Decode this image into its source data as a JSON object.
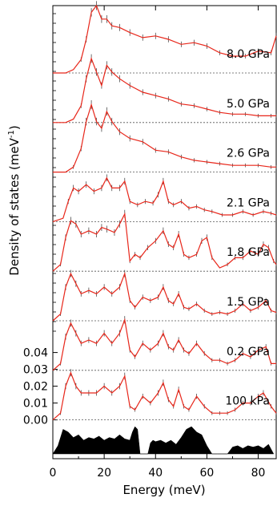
{
  "chart_data": {
    "type": "line",
    "xlabel": "Energy (meV)",
    "ylabel": "Density of states (meV",
    "ylabel_sup": "-1",
    "ylabel_tail": ")",
    "xlim": [
      0,
      87
    ],
    "x_ticks": [
      0,
      20,
      40,
      60,
      80
    ],
    "x_tick_labels": [
      "0",
      "20",
      "40",
      "60",
      "80"
    ],
    "y_ticks": [
      0.0,
      0.01,
      0.02,
      0.03,
      0.04
    ],
    "y_tick_labels": [
      "0.00",
      "0.01",
      "0.02",
      "0.03",
      "0.04"
    ],
    "grid": false,
    "series": [
      {
        "name": "8.0 GPa",
        "label": "8.0 GPa",
        "x": [
          0,
          5,
          8,
          11,
          13,
          15,
          17,
          19,
          21,
          23,
          26,
          30,
          35,
          40,
          45,
          50,
          55,
          60,
          65,
          70,
          75,
          80,
          85,
          87
        ],
        "values": [
          0,
          0,
          0.002,
          0.008,
          0.02,
          0.036,
          0.04,
          0.032,
          0.032,
          0.028,
          0.027,
          0.024,
          0.021,
          0.022,
          0.02,
          0.017,
          0.018,
          0.016,
          0.012,
          0.01,
          0.01,
          0.013,
          0.012,
          0.022
        ]
      },
      {
        "name": "5.0 GPa",
        "label": "5.0 GPa",
        "x": [
          0,
          5,
          8,
          11,
          13,
          15,
          17,
          19,
          21,
          23,
          26,
          30,
          35,
          40,
          45,
          50,
          55,
          60,
          65,
          70,
          75,
          80,
          85,
          87
        ],
        "values": [
          0,
          0,
          0.002,
          0.01,
          0.026,
          0.038,
          0.03,
          0.022,
          0.034,
          0.03,
          0.026,
          0.022,
          0.018,
          0.016,
          0.014,
          0.011,
          0.01,
          0.008,
          0.006,
          0.005,
          0.005,
          0.004,
          0.004,
          0.004
        ]
      },
      {
        "name": "2.6 GPa",
        "label": "2.6 GPa",
        "x": [
          0,
          5,
          8,
          11,
          13,
          15,
          17,
          19,
          21,
          23,
          26,
          30,
          35,
          40,
          45,
          50,
          55,
          60,
          65,
          70,
          75,
          80,
          85,
          87
        ],
        "values": [
          0,
          0,
          0.003,
          0.014,
          0.03,
          0.04,
          0.03,
          0.026,
          0.036,
          0.03,
          0.024,
          0.02,
          0.018,
          0.013,
          0.012,
          0.009,
          0.007,
          0.006,
          0.005,
          0.004,
          0.004,
          0.004,
          0.003,
          0.003
        ]
      },
      {
        "name": "2.1 GPa",
        "label": "2.1 GPa",
        "x": [
          0,
          4,
          6,
          8,
          10,
          13,
          16,
          19,
          21,
          23,
          26,
          28,
          30,
          33,
          36,
          39,
          41,
          43,
          45,
          47,
          50,
          53,
          56,
          59,
          62,
          66,
          70,
          74,
          78,
          82,
          85,
          87
        ],
        "values": [
          0,
          0.002,
          0.012,
          0.02,
          0.018,
          0.022,
          0.018,
          0.02,
          0.026,
          0.02,
          0.02,
          0.024,
          0.012,
          0.01,
          0.012,
          0.011,
          0.016,
          0.024,
          0.012,
          0.01,
          0.012,
          0.008,
          0.009,
          0.007,
          0.006,
          0.004,
          0.004,
          0.006,
          0.004,
          0.006,
          0.005,
          0.004
        ]
      },
      {
        "name": "1.8 GPa",
        "label": "1.8 GPa",
        "x": [
          0,
          3,
          5,
          7,
          9,
          11,
          14,
          17,
          19,
          21,
          24,
          26,
          28,
          30,
          32,
          34,
          37,
          40,
          43,
          45,
          47,
          49,
          51,
          53,
          56,
          58,
          60,
          62,
          65,
          68,
          71,
          74,
          77,
          80,
          82,
          84,
          86,
          87
        ],
        "values": [
          0,
          0.004,
          0.02,
          0.03,
          0.028,
          0.022,
          0.024,
          0.022,
          0.026,
          0.025,
          0.023,
          0.028,
          0.034,
          0.006,
          0.01,
          0.008,
          0.014,
          0.018,
          0.024,
          0.016,
          0.014,
          0.022,
          0.01,
          0.008,
          0.01,
          0.018,
          0.02,
          0.008,
          0.002,
          0.004,
          0.008,
          0.008,
          0.012,
          0.01,
          0.016,
          0.014,
          0.006,
          0.004
        ]
      },
      {
        "name": "1.5 GPa",
        "label": "1.5 GPa",
        "x": [
          0,
          3,
          5,
          7,
          9,
          11,
          14,
          17,
          20,
          23,
          26,
          28,
          30,
          32,
          35,
          38,
          41,
          43,
          45,
          47,
          49,
          51,
          53,
          56,
          59,
          62,
          65,
          68,
          71,
          74,
          77,
          80,
          83,
          85,
          87
        ],
        "values": [
          0,
          0.004,
          0.02,
          0.028,
          0.022,
          0.016,
          0.018,
          0.016,
          0.02,
          0.016,
          0.02,
          0.028,
          0.012,
          0.008,
          0.014,
          0.012,
          0.014,
          0.02,
          0.012,
          0.01,
          0.016,
          0.008,
          0.007,
          0.01,
          0.006,
          0.004,
          0.005,
          0.004,
          0.006,
          0.01,
          0.006,
          0.008,
          0.012,
          0.006,
          0.005
        ]
      },
      {
        "name": "0.2 GPa",
        "label": "0.2 GPa",
        "x": [
          0,
          3,
          5,
          7,
          9,
          11,
          14,
          17,
          20,
          23,
          26,
          28,
          30,
          32,
          35,
          38,
          41,
          43,
          45,
          47,
          49,
          51,
          53,
          56,
          59,
          62,
          65,
          68,
          71,
          74,
          77,
          80,
          83,
          85,
          87
        ],
        "values": [
          0,
          0.004,
          0.02,
          0.028,
          0.022,
          0.016,
          0.018,
          0.016,
          0.022,
          0.016,
          0.022,
          0.03,
          0.012,
          0.008,
          0.016,
          0.012,
          0.016,
          0.022,
          0.014,
          0.012,
          0.018,
          0.012,
          0.01,
          0.016,
          0.01,
          0.006,
          0.006,
          0.004,
          0.006,
          0.01,
          0.008,
          0.012,
          0.014,
          0.004,
          0.004
        ]
      },
      {
        "name": "100 kPa",
        "label": "100 kPa",
        "x": [
          0,
          3,
          5,
          7,
          9,
          11,
          14,
          17,
          20,
          23,
          26,
          28,
          30,
          32,
          35,
          38,
          41,
          43,
          45,
          47,
          49,
          51,
          53,
          56,
          59,
          62,
          65,
          68,
          71,
          74,
          77,
          80,
          82,
          85,
          87
        ],
        "values": [
          0,
          0.004,
          0.02,
          0.028,
          0.02,
          0.016,
          0.016,
          0.016,
          0.02,
          0.016,
          0.02,
          0.026,
          0.008,
          0.006,
          0.014,
          0.01,
          0.016,
          0.022,
          0.012,
          0.008,
          0.018,
          0.008,
          0.006,
          0.014,
          0.008,
          0.004,
          0.004,
          0.004,
          0.006,
          0.01,
          0.01,
          0.014,
          0.016,
          0.008,
          0.004
        ]
      }
    ],
    "calculated_dos": {
      "x": [
        0,
        2,
        4,
        6,
        8,
        10,
        12,
        14,
        16,
        18,
        20,
        22,
        24,
        26,
        28,
        30,
        31,
        32,
        33,
        34,
        35,
        36,
        37,
        38,
        39,
        40,
        42,
        44,
        46,
        48,
        50,
        52,
        54,
        56,
        58,
        60,
        62,
        64,
        66,
        68,
        70,
        72,
        74,
        76,
        78,
        80,
        82,
        84,
        86
      ],
      "values": [
        0,
        0.3,
        0.9,
        0.8,
        0.6,
        0.7,
        0.5,
        0.6,
        0.55,
        0.65,
        0.5,
        0.6,
        0.55,
        0.7,
        0.55,
        0.5,
        0.8,
        1.0,
        0.9,
        0,
        0,
        0,
        0,
        0.4,
        0.5,
        0.45,
        0.5,
        0.4,
        0.5,
        0.35,
        0.6,
        0.9,
        1.0,
        0.8,
        0.7,
        0.3,
        0,
        0,
        0,
        0,
        0.25,
        0.3,
        0.2,
        0.3,
        0.25,
        0.3,
        0.2,
        0.35,
        0
      ]
    }
  }
}
